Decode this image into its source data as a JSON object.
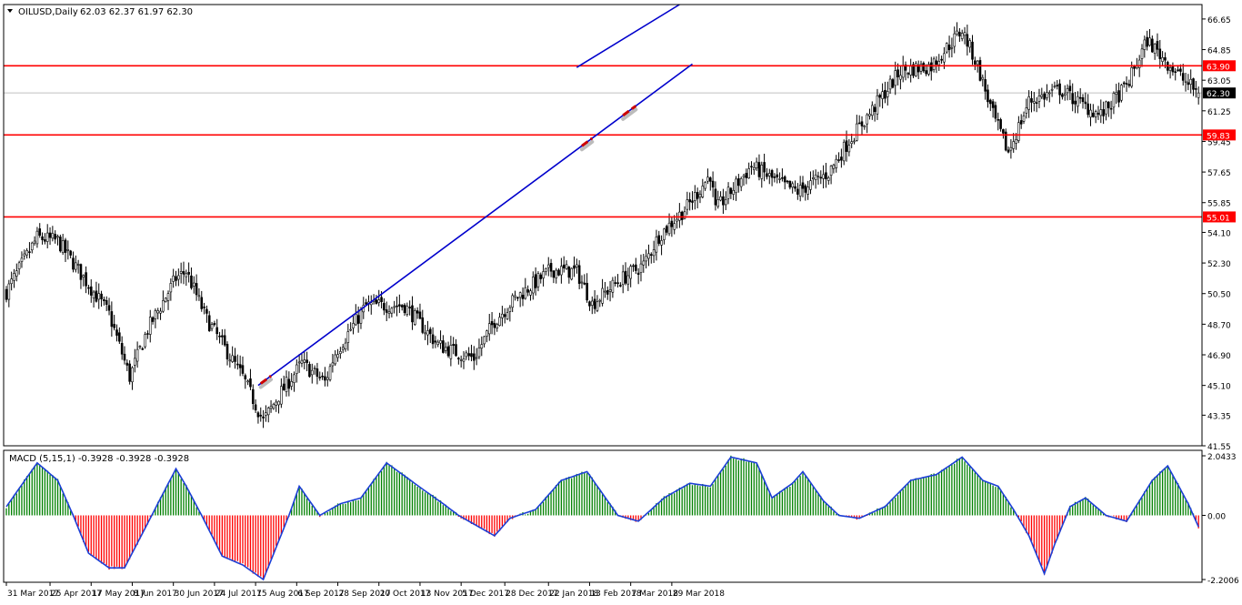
{
  "main_panel": {
    "title": "OILUSD,Daily",
    "ohlc": "62.03 62.37 61.97 62.30",
    "current_price": "62.30"
  },
  "macd_panel": {
    "title": "MACD (5,15,1) -0.3928 -0.3928 -0.3928"
  },
  "colors": {
    "bull": "#008000",
    "bear": "#ff0000",
    "trend": "#0000cc",
    "level": "#ff0000",
    "signal": "#1c3fd6",
    "text": "#000000"
  },
  "chart_data": [
    {
      "type": "candlestick",
      "title": "OILUSD,Daily",
      "ylim": [
        41.55,
        67.5
      ],
      "y_ticks": [
        "66.65",
        "64.85",
        "63.05",
        "61.25",
        "59.45",
        "57.65",
        "55.85",
        "54.10",
        "52.30",
        "50.50",
        "48.70",
        "46.90",
        "45.10",
        "43.35",
        "41.55"
      ],
      "x_ticks": [
        "31 Mar 2017",
        "25 Apr 2017",
        "17 May 2017",
        "8 Jun 2017",
        "30 Jun 2017",
        "24 Jul 2017",
        "15 Aug 2017",
        "6 Sep 2017",
        "28 Sep 2017",
        "20 Oct 2017",
        "13 Nov 2017",
        "5 Dec 2017",
        "28 Dec 2017",
        "22 Jan 2018",
        "13 Feb 2018",
        "7 Mar 2018",
        "29 Mar 2018"
      ],
      "horizontal_levels": [
        {
          "value": 63.9,
          "label": "63.90"
        },
        {
          "value": 59.83,
          "label": "59.83"
        },
        {
          "value": 55.01,
          "label": "55.01"
        }
      ],
      "current_price": {
        "value": 62.3,
        "label": "62.30"
      },
      "trendlines": [
        {
          "from": [
            "16 Aug 2017",
            45.1
          ],
          "to": [
            "10 Apr 2018",
            64.0
          ]
        },
        {
          "from": [
            "6 Feb 2018",
            63.8
          ],
          "to": [
            "3 Apr 2018",
            67.5
          ]
        }
      ],
      "close_path": [
        [
          0,
          50.6
        ],
        [
          12,
          53.8
        ],
        [
          20,
          53.6
        ],
        [
          40,
          49.3
        ],
        [
          48,
          45.6
        ],
        [
          55,
          48.4
        ],
        [
          66,
          51.4
        ],
        [
          70,
          51.8
        ],
        [
          78,
          49.0
        ],
        [
          92,
          45.6
        ],
        [
          100,
          43.0
        ],
        [
          106,
          44.5
        ],
        [
          115,
          46.4
        ],
        [
          124,
          45.3
        ],
        [
          128,
          47.0
        ],
        [
          140,
          49.8
        ],
        [
          155,
          49.8
        ],
        [
          168,
          47.5
        ],
        [
          174,
          47.1
        ],
        [
          182,
          46.7
        ],
        [
          190,
          48.9
        ],
        [
          198,
          50.2
        ],
        [
          212,
          51.9
        ],
        [
          222,
          51.8
        ],
        [
          228,
          49.9
        ],
        [
          238,
          51.2
        ],
        [
          248,
          52.2
        ],
        [
          254,
          53.9
        ],
        [
          265,
          55.6
        ],
        [
          274,
          57.5
        ],
        [
          276,
          55.4
        ],
        [
          290,
          58.0
        ],
        [
          302,
          56.9
        ],
        [
          308,
          56.5
        ],
        [
          320,
          57.6
        ],
        [
          328,
          59.5
        ],
        [
          338,
          61.5
        ],
        [
          348,
          63.6
        ],
        [
          360,
          63.9
        ],
        [
          372,
          66.0
        ],
        [
          378,
          63.9
        ],
        [
          384,
          61.0
        ],
        [
          390,
          58.8
        ],
        [
          398,
          61.8
        ],
        [
          410,
          62.5
        ],
        [
          420,
          61.5
        ],
        [
          426,
          61.0
        ],
        [
          436,
          62.7
        ],
        [
          444,
          65.4
        ],
        [
          450,
          64.4
        ],
        [
          458,
          63.1
        ],
        [
          464,
          62.3
        ]
      ]
    },
    {
      "type": "bar",
      "title": "MACD (5,15,1)",
      "value": -0.3928,
      "ylim": [
        -2.2006,
        2.0433
      ],
      "y_ticks": [
        "2.0433",
        "0.00",
        "-2.2006"
      ],
      "histogram_path": [
        [
          0,
          0.3
        ],
        [
          12,
          1.8
        ],
        [
          20,
          1.2
        ],
        [
          26,
          0.0
        ],
        [
          32,
          -1.3
        ],
        [
          40,
          -1.8
        ],
        [
          46,
          -1.8
        ],
        [
          56,
          -0.1
        ],
        [
          66,
          1.6
        ],
        [
          70,
          1.0
        ],
        [
          76,
          0.0
        ],
        [
          84,
          -1.4
        ],
        [
          92,
          -1.7
        ],
        [
          100,
          -2.2
        ],
        [
          110,
          0.0
        ],
        [
          114,
          1.0
        ],
        [
          122,
          0.0
        ],
        [
          130,
          0.4
        ],
        [
          138,
          0.6
        ],
        [
          148,
          1.8
        ],
        [
          162,
          0.9
        ],
        [
          170,
          0.4
        ],
        [
          176,
          0.0
        ],
        [
          182,
          -0.3
        ],
        [
          190,
          -0.7
        ],
        [
          196,
          -0.1
        ],
        [
          206,
          0.2
        ],
        [
          216,
          1.2
        ],
        [
          226,
          1.5
        ],
        [
          234,
          0.5
        ],
        [
          238,
          0.0
        ],
        [
          246,
          -0.2
        ],
        [
          256,
          0.6
        ],
        [
          266,
          1.1
        ],
        [
          274,
          1.0
        ],
        [
          282,
          2.0
        ],
        [
          292,
          1.8
        ],
        [
          298,
          0.6
        ],
        [
          306,
          1.1
        ],
        [
          310,
          1.5
        ],
        [
          318,
          0.5
        ],
        [
          324,
          0.0
        ],
        [
          332,
          -0.1
        ],
        [
          342,
          0.3
        ],
        [
          352,
          1.2
        ],
        [
          362,
          1.4
        ],
        [
          372,
          2.0
        ],
        [
          380,
          1.2
        ],
        [
          386,
          1.0
        ],
        [
          392,
          0.2
        ],
        [
          398,
          -0.7
        ],
        [
          404,
          -2.0
        ],
        [
          408,
          -1.0
        ],
        [
          414,
          0.3
        ],
        [
          420,
          0.6
        ],
        [
          428,
          0.0
        ],
        [
          436,
          -0.2
        ],
        [
          446,
          1.2
        ],
        [
          452,
          1.7
        ],
        [
          460,
          0.4
        ],
        [
          464,
          -0.3928
        ]
      ]
    }
  ]
}
